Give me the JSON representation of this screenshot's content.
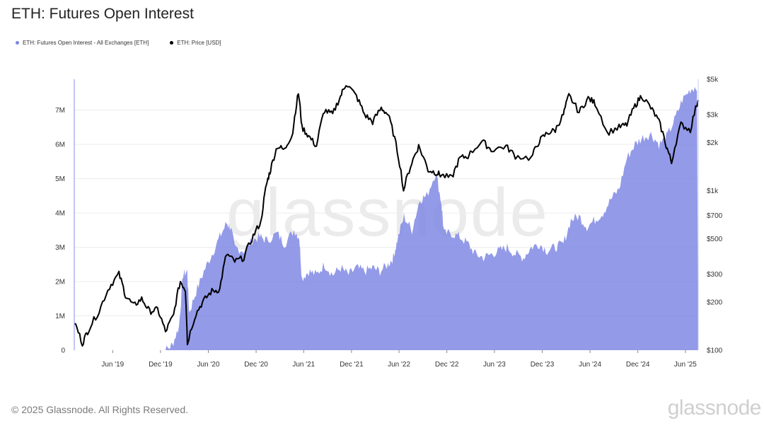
{
  "title": "ETH: Futures Open Interest",
  "legend": {
    "oi_label": "ETH: Futures Open Interest - All Exchanges [ETH]",
    "price_label": "ETH: Price [USD]",
    "oi_color": "#7b84e3",
    "price_color": "#000000"
  },
  "watermark": "glassnode",
  "footer": "© 2025 Glassnode. All Rights Reserved.",
  "brand": "glassnode",
  "chart_data": {
    "type": "area",
    "title": "ETH: Futures Open Interest",
    "x_ticks": [
      "Jun '19",
      "Dec '19",
      "Jun '20",
      "Dec '20",
      "Jun '21",
      "Dec '21",
      "Jun '22",
      "Dec '22",
      "Jun '23",
      "Dec '23",
      "Jun '24",
      "Dec '24",
      "Jun '25"
    ],
    "x_tick_dates": [
      "2019-06-01",
      "2019-12-01",
      "2020-06-01",
      "2020-12-01",
      "2021-06-01",
      "2021-12-01",
      "2022-06-01",
      "2022-12-01",
      "2023-06-01",
      "2023-12-01",
      "2024-06-01",
      "2024-12-01",
      "2025-06-01"
    ],
    "xlim": [
      "2019-01-05",
      "2025-07-20"
    ],
    "y_left_ticks": [
      "0",
      "1M",
      "2M",
      "3M",
      "4M",
      "5M",
      "6M",
      "7M"
    ],
    "ylim_left": [
      0,
      7900000
    ],
    "y_right_ticks": [
      "$100",
      "$200",
      "$300",
      "$500",
      "$700",
      "$1k",
      "$2k",
      "$3k",
      "$5k"
    ],
    "y_right_values": [
      100,
      200,
      300,
      500,
      700,
      1000,
      2000,
      3000,
      5000
    ],
    "ylim_right": [
      100,
      5000
    ],
    "right_axis_scale": "log",
    "grid": "horizontal",
    "legend_position": "top-left",
    "series": [
      {
        "name": "ETH: Futures Open Interest - All Exchanges [ETH]",
        "axis": "left",
        "style": "area",
        "color": "#7b84e3",
        "points": [
          [
            "2019-11-20",
            0
          ],
          [
            "2019-12-20",
            0
          ],
          [
            "2020-01-15",
            150000
          ],
          [
            "2020-02-10",
            700000
          ],
          [
            "2020-02-25",
            2200000
          ],
          [
            "2020-03-12",
            2300000
          ],
          [
            "2020-03-20",
            1100000
          ],
          [
            "2020-04-15",
            1700000
          ],
          [
            "2020-05-15",
            2300000
          ],
          [
            "2020-06-15",
            2800000
          ],
          [
            "2020-07-15",
            3300000
          ],
          [
            "2020-08-10",
            3700000
          ],
          [
            "2020-08-25",
            3600000
          ],
          [
            "2020-09-10",
            3000000
          ],
          [
            "2020-10-15",
            2900000
          ],
          [
            "2020-11-15",
            3200000
          ],
          [
            "2020-12-15",
            3300000
          ],
          [
            "2021-01-10",
            3200000
          ],
          [
            "2021-02-20",
            3400000
          ],
          [
            "2021-03-20",
            3100000
          ],
          [
            "2021-04-25",
            3500000
          ],
          [
            "2021-05-15",
            3300000
          ],
          [
            "2021-05-25",
            2100000
          ],
          [
            "2021-06-20",
            2300000
          ],
          [
            "2021-07-20",
            2200000
          ],
          [
            "2021-08-20",
            2500000
          ],
          [
            "2021-09-20",
            2200000
          ],
          [
            "2021-10-20",
            2400000
          ],
          [
            "2021-11-20",
            2200000
          ],
          [
            "2021-12-20",
            2400000
          ],
          [
            "2022-01-20",
            2300000
          ],
          [
            "2022-02-20",
            2400000
          ],
          [
            "2022-03-20",
            2300000
          ],
          [
            "2022-04-20",
            2500000
          ],
          [
            "2022-05-10",
            2700000
          ],
          [
            "2022-05-25",
            3200000
          ],
          [
            "2022-06-20",
            3900000
          ],
          [
            "2022-07-20",
            3500000
          ],
          [
            "2022-08-20",
            4400000
          ],
          [
            "2022-09-15",
            4500000
          ],
          [
            "2022-10-20",
            5200000
          ],
          [
            "2022-11-10",
            4300000
          ],
          [
            "2022-11-20",
            3400000
          ],
          [
            "2022-12-20",
            3400000
          ],
          [
            "2023-01-20",
            3300000
          ],
          [
            "2023-02-20",
            3100000
          ],
          [
            "2023-03-20",
            2800000
          ],
          [
            "2023-04-20",
            2700000
          ],
          [
            "2023-05-20",
            2800000
          ],
          [
            "2023-06-20",
            2900000
          ],
          [
            "2023-07-20",
            3000000
          ],
          [
            "2023-08-20",
            2800000
          ],
          [
            "2023-09-20",
            2700000
          ],
          [
            "2023-10-20",
            3000000
          ],
          [
            "2023-11-20",
            3100000
          ],
          [
            "2023-12-20",
            2900000
          ],
          [
            "2024-01-20",
            3000000
          ],
          [
            "2024-02-20",
            3100000
          ],
          [
            "2024-03-20",
            3800000
          ],
          [
            "2024-04-20",
            3900000
          ],
          [
            "2024-05-20",
            3600000
          ],
          [
            "2024-06-20",
            3800000
          ],
          [
            "2024-07-20",
            4000000
          ],
          [
            "2024-08-20",
            4400000
          ],
          [
            "2024-09-20",
            4700000
          ],
          [
            "2024-10-20",
            5600000
          ],
          [
            "2024-11-20",
            6000000
          ],
          [
            "2024-12-20",
            6200000
          ],
          [
            "2025-01-20",
            6300000
          ],
          [
            "2025-02-20",
            6000000
          ],
          [
            "2025-03-20",
            6200000
          ],
          [
            "2025-04-20",
            6700000
          ],
          [
            "2025-05-20",
            7300000
          ],
          [
            "2025-06-20",
            7600000
          ],
          [
            "2025-07-15",
            7700000
          ],
          [
            "2025-07-20",
            0
          ]
        ]
      },
      {
        "name": "ETH: Price [USD]",
        "axis": "right",
        "style": "line",
        "color": "#000000",
        "points": [
          [
            "2019-01-05",
            150
          ],
          [
            "2019-02-05",
            110
          ],
          [
            "2019-03-01",
            135
          ],
          [
            "2019-04-10",
            175
          ],
          [
            "2019-05-20",
            250
          ],
          [
            "2019-06-25",
            300
          ],
          [
            "2019-07-20",
            220
          ],
          [
            "2019-08-20",
            190
          ],
          [
            "2019-09-20",
            210
          ],
          [
            "2019-10-20",
            175
          ],
          [
            "2019-11-20",
            180
          ],
          [
            "2019-12-20",
            130
          ],
          [
            "2020-01-20",
            165
          ],
          [
            "2020-02-15",
            270
          ],
          [
            "2020-03-05",
            240
          ],
          [
            "2020-03-13",
            110
          ],
          [
            "2020-04-15",
            170
          ],
          [
            "2020-05-15",
            205
          ],
          [
            "2020-06-15",
            235
          ],
          [
            "2020-07-15",
            240
          ],
          [
            "2020-08-10",
            400
          ],
          [
            "2020-09-10",
            360
          ],
          [
            "2020-10-15",
            380
          ],
          [
            "2020-11-20",
            520
          ],
          [
            "2020-12-20",
            640
          ],
          [
            "2021-01-10",
            1100
          ],
          [
            "2021-01-25",
            1350
          ],
          [
            "2021-02-20",
            1900
          ],
          [
            "2021-03-20",
            1800
          ],
          [
            "2021-04-20",
            2300
          ],
          [
            "2021-05-12",
            4100
          ],
          [
            "2021-05-25",
            2500
          ],
          [
            "2021-06-20",
            2200
          ],
          [
            "2021-07-20",
            1900
          ],
          [
            "2021-08-20",
            3200
          ],
          [
            "2021-09-20",
            3000
          ],
          [
            "2021-10-20",
            3900
          ],
          [
            "2021-11-10",
            4700
          ],
          [
            "2021-12-20",
            3900
          ],
          [
            "2022-01-20",
            3000
          ],
          [
            "2022-02-20",
            2700
          ],
          [
            "2022-03-25",
            3300
          ],
          [
            "2022-04-20",
            3000
          ],
          [
            "2022-05-20",
            1950
          ],
          [
            "2022-06-18",
            1000
          ],
          [
            "2022-07-20",
            1500
          ],
          [
            "2022-08-15",
            1900
          ],
          [
            "2022-09-20",
            1350
          ],
          [
            "2022-10-20",
            1300
          ],
          [
            "2022-11-10",
            1250
          ],
          [
            "2022-12-20",
            1200
          ],
          [
            "2023-01-20",
            1600
          ],
          [
            "2023-02-20",
            1650
          ],
          [
            "2023-04-15",
            2050
          ],
          [
            "2023-05-20",
            1800
          ],
          [
            "2023-07-15",
            1900
          ],
          [
            "2023-08-20",
            1650
          ],
          [
            "2023-10-20",
            1600
          ],
          [
            "2023-11-20",
            2050
          ],
          [
            "2023-12-20",
            2300
          ],
          [
            "2024-01-20",
            2400
          ],
          [
            "2024-02-20",
            3000
          ],
          [
            "2024-03-12",
            3950
          ],
          [
            "2024-04-20",
            3100
          ],
          [
            "2024-05-25",
            3800
          ],
          [
            "2024-06-20",
            3550
          ],
          [
            "2024-08-05",
            2300
          ],
          [
            "2024-09-20",
            2500
          ],
          [
            "2024-10-20",
            2600
          ],
          [
            "2024-11-20",
            3400
          ],
          [
            "2024-12-15",
            3950
          ],
          [
            "2025-01-20",
            3300
          ],
          [
            "2025-02-20",
            2700
          ],
          [
            "2025-03-20",
            1900
          ],
          [
            "2025-04-09",
            1500
          ],
          [
            "2025-05-15",
            2600
          ],
          [
            "2025-06-20",
            2400
          ],
          [
            "2025-07-20",
            3700
          ]
        ]
      }
    ]
  }
}
